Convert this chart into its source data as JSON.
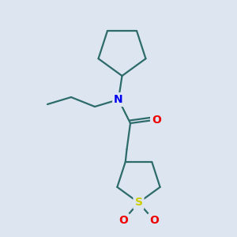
{
  "background_color": "#dde6f0",
  "bond_color": "#2d6b6b",
  "N_color": "#0000ee",
  "O_color": "#ee0000",
  "S_color": "#cccc00",
  "line_width": 1.6,
  "figsize": [
    3.0,
    3.0
  ],
  "dpi": 100,
  "xlim": [
    0,
    10
  ],
  "ylim": [
    0,
    10
  ]
}
